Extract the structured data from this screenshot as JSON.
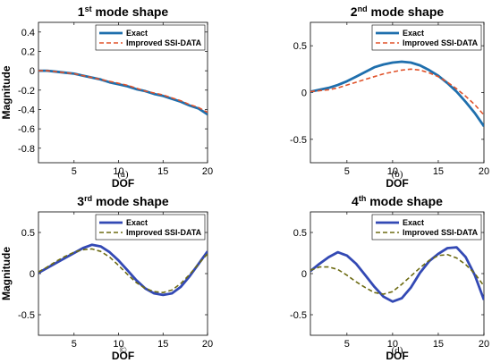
{
  "chart_data": [
    {
      "type": "line",
      "title_main": "1",
      "title_sup": "st",
      "title_rest": " mode shape",
      "xlabel": "DOF",
      "ylabel": "Magnitude",
      "xlim": [
        1,
        20
      ],
      "ylim": [
        -0.95,
        0.5
      ],
      "xticks": [
        5,
        10,
        15,
        20
      ],
      "yticks": [
        0.4,
        0.2,
        0,
        -0.2,
        -0.4,
        -0.6,
        -0.8
      ],
      "grid": false,
      "legend": "top-right",
      "caption": "(a)",
      "x": [
        1,
        2,
        3,
        4,
        5,
        6,
        7,
        8,
        9,
        10,
        11,
        12,
        13,
        14,
        15,
        16,
        17,
        18,
        19,
        20
      ],
      "series": [
        {
          "name": "Exact",
          "color": "#1f6fad",
          "dash": "solid",
          "values": [
            0,
            0,
            -0.01,
            -0.02,
            -0.03,
            -0.05,
            -0.07,
            -0.09,
            -0.12,
            -0.14,
            -0.16,
            -0.19,
            -0.21,
            -0.24,
            -0.26,
            -0.29,
            -0.32,
            -0.36,
            -0.39,
            -0.45
          ]
        },
        {
          "name": "Improved SSI-DATA",
          "color": "#e0522a",
          "dash": "dashed",
          "values": [
            0,
            0,
            -0.01,
            -0.02,
            -0.03,
            -0.05,
            -0.07,
            -0.09,
            -0.11,
            -0.13,
            -0.15,
            -0.18,
            -0.21,
            -0.23,
            -0.25,
            -0.28,
            -0.31,
            -0.35,
            -0.38,
            -0.43
          ]
        }
      ]
    },
    {
      "type": "line",
      "title_main": "2",
      "title_sup": "nd",
      "title_rest": " mode shape",
      "xlabel": "DOF",
      "ylabel": "",
      "xlim": [
        1,
        20
      ],
      "ylim": [
        -0.75,
        0.75
      ],
      "xticks": [
        5,
        10,
        15,
        20
      ],
      "yticks": [
        0.5,
        0,
        -0.5
      ],
      "grid": false,
      "legend": "top-right",
      "caption": "(b)",
      "x": [
        1,
        2,
        3,
        4,
        5,
        6,
        7,
        8,
        9,
        10,
        11,
        12,
        13,
        14,
        15,
        16,
        17,
        18,
        19,
        20
      ],
      "series": [
        {
          "name": "Exact",
          "color": "#1f6fad",
          "dash": "solid",
          "values": [
            0.01,
            0.03,
            0.05,
            0.08,
            0.12,
            0.17,
            0.22,
            0.27,
            0.3,
            0.32,
            0.33,
            0.32,
            0.29,
            0.24,
            0.18,
            0.1,
            0.01,
            -0.1,
            -0.22,
            -0.36
          ]
        },
        {
          "name": "Improved SSI-DATA",
          "color": "#e0522a",
          "dash": "dashed",
          "values": [
            0.01,
            0.02,
            0.03,
            0.05,
            0.08,
            0.11,
            0.14,
            0.17,
            0.2,
            0.22,
            0.24,
            0.25,
            0.24,
            0.21,
            0.17,
            0.11,
            0.04,
            -0.04,
            -0.13,
            -0.24
          ]
        }
      ]
    },
    {
      "type": "line",
      "title_main": "3",
      "title_sup": "rd",
      "title_rest": " mode shape",
      "xlabel": "DOF",
      "ylabel": "Magnitude",
      "xlim": [
        1,
        20
      ],
      "ylim": [
        -0.75,
        0.75
      ],
      "xticks": [
        5,
        10,
        15,
        20
      ],
      "yticks": [
        0.5,
        0,
        -0.5
      ],
      "grid": false,
      "legend": "top-right",
      "caption": "©",
      "x": [
        1,
        2,
        3,
        4,
        5,
        6,
        7,
        8,
        9,
        10,
        11,
        12,
        13,
        14,
        15,
        16,
        17,
        18,
        19,
        20
      ],
      "series": [
        {
          "name": "Exact",
          "color": "#3349b4",
          "dash": "solid",
          "values": [
            0.01,
            0.07,
            0.13,
            0.19,
            0.25,
            0.31,
            0.35,
            0.33,
            0.26,
            0.16,
            0.04,
            -0.08,
            -0.18,
            -0.24,
            -0.26,
            -0.24,
            -0.16,
            -0.03,
            0.12,
            0.27
          ]
        },
        {
          "name": "Improved SSI-DATA",
          "color": "#6d6b12",
          "dash": "dashed",
          "values": [
            0.02,
            0.08,
            0.15,
            0.21,
            0.26,
            0.29,
            0.3,
            0.27,
            0.2,
            0.1,
            -0.01,
            -0.11,
            -0.18,
            -0.22,
            -0.23,
            -0.2,
            -0.12,
            -0.01,
            0.12,
            0.24
          ]
        }
      ]
    },
    {
      "type": "line",
      "title_main": "4",
      "title_sup": "th",
      "title_rest": " mode shape",
      "xlabel": "DOF",
      "ylabel": "",
      "xlim": [
        1,
        20
      ],
      "ylim": [
        -0.75,
        0.75
      ],
      "xticks": [
        5,
        10,
        15,
        20
      ],
      "yticks": [
        0.5,
        0,
        -0.5
      ],
      "grid": false,
      "legend": "top-right",
      "caption": "(d)",
      "x": [
        1,
        2,
        3,
        4,
        5,
        6,
        7,
        8,
        9,
        10,
        11,
        12,
        13,
        14,
        15,
        16,
        17,
        18,
        19,
        20
      ],
      "series": [
        {
          "name": "Exact",
          "color": "#3349b4",
          "dash": "solid",
          "values": [
            0.03,
            0.12,
            0.2,
            0.26,
            0.22,
            0.12,
            -0.02,
            -0.16,
            -0.28,
            -0.34,
            -0.3,
            -0.17,
            0.01,
            0.15,
            0.24,
            0.31,
            0.32,
            0.2,
            -0.02,
            -0.32
          ]
        },
        {
          "name": "Improved SSI-DATA",
          "color": "#6d6b12",
          "dash": "dashed",
          "values": [
            0.04,
            0.08,
            0.08,
            0.05,
            -0.02,
            -0.1,
            -0.17,
            -0.23,
            -0.25,
            -0.22,
            -0.13,
            -0.03,
            0.07,
            0.16,
            0.22,
            0.23,
            0.19,
            0.11,
            0.0,
            -0.15
          ]
        }
      ]
    }
  ]
}
